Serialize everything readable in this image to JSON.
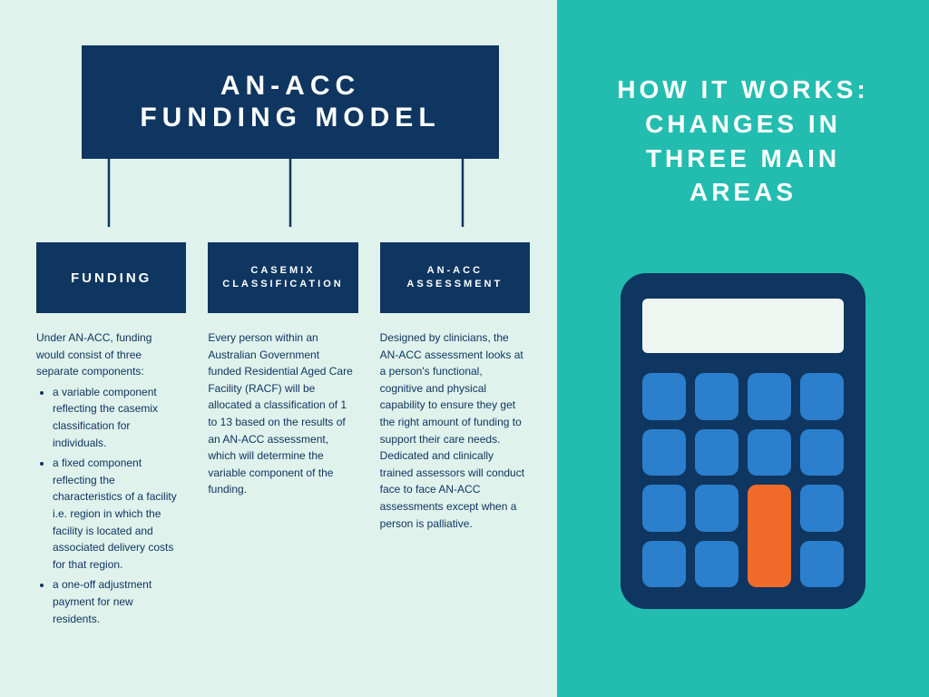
{
  "colors": {
    "left_bg": "#e0f2ec",
    "right_bg": "#23bdb0",
    "navy": "#0e3660",
    "key_blue": "#2b7fcc",
    "key_orange": "#f26a2a",
    "calc_screen": "#eef6f2",
    "white": "#ffffff"
  },
  "main_title": {
    "line1": "AN-ACC",
    "line2": "FUNDING MODEL"
  },
  "columns": [
    {
      "head": "FUNDING",
      "head_size": "big",
      "body_intro": "Under AN-ACC, funding would consist of three separate components:",
      "bullets": [
        "a variable component reflecting the casemix classification for individuals.",
        "a fixed component reflecting the characteristics of a facility i.e. region in which the facility is located and associated delivery costs for that region.",
        "a one-off adjustment payment for new residents."
      ]
    },
    {
      "head": "CASEMIX\nCLASSIFICATION",
      "head_size": "small",
      "body_text": "Every person within an Australian Government funded Residential Aged Care Facility (RACF) will be allocated a classification of 1 to 13 based on the results of an AN-ACC assessment, which will determine the variable component of the funding."
    },
    {
      "head": "AN-ACC\nASSESSMENT",
      "head_size": "small",
      "body_text": "Designed by clinicians, the AN-ACC assessment looks at a person's functional, cognitive and physical capability to ensure they get the right amount of funding to support their care needs. Dedicated and clinically trained assessors will conduct face to face AN-ACC assessments except when a person is palliative."
    }
  ],
  "right_title": "HOW IT WORKS:\nCHANGES IN\nTHREE MAIN\nAREAS",
  "calculator": {
    "rows": 4,
    "cols": 4,
    "key_color": "#2b7fcc",
    "special_keys": [
      {
        "row": 3,
        "col": 3,
        "rowspan": 2,
        "color": "#f26a2a"
      }
    ]
  }
}
